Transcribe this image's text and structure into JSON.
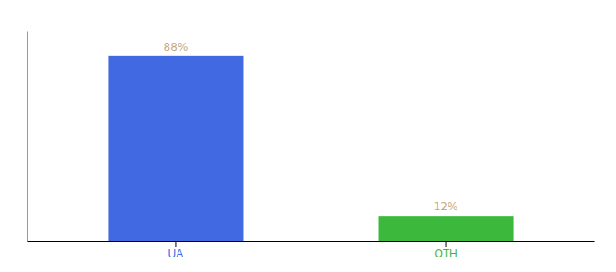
{
  "chart_data": {
    "type": "bar",
    "categories": [
      "UA",
      "OTH"
    ],
    "values": [
      88,
      12
    ],
    "value_labels": [
      "88%",
      "12%"
    ],
    "colors": [
      "#4169e1",
      "#3cb83c"
    ],
    "ylim": [
      0,
      100
    ],
    "data_labels": true,
    "tick_labels": "x"
  }
}
